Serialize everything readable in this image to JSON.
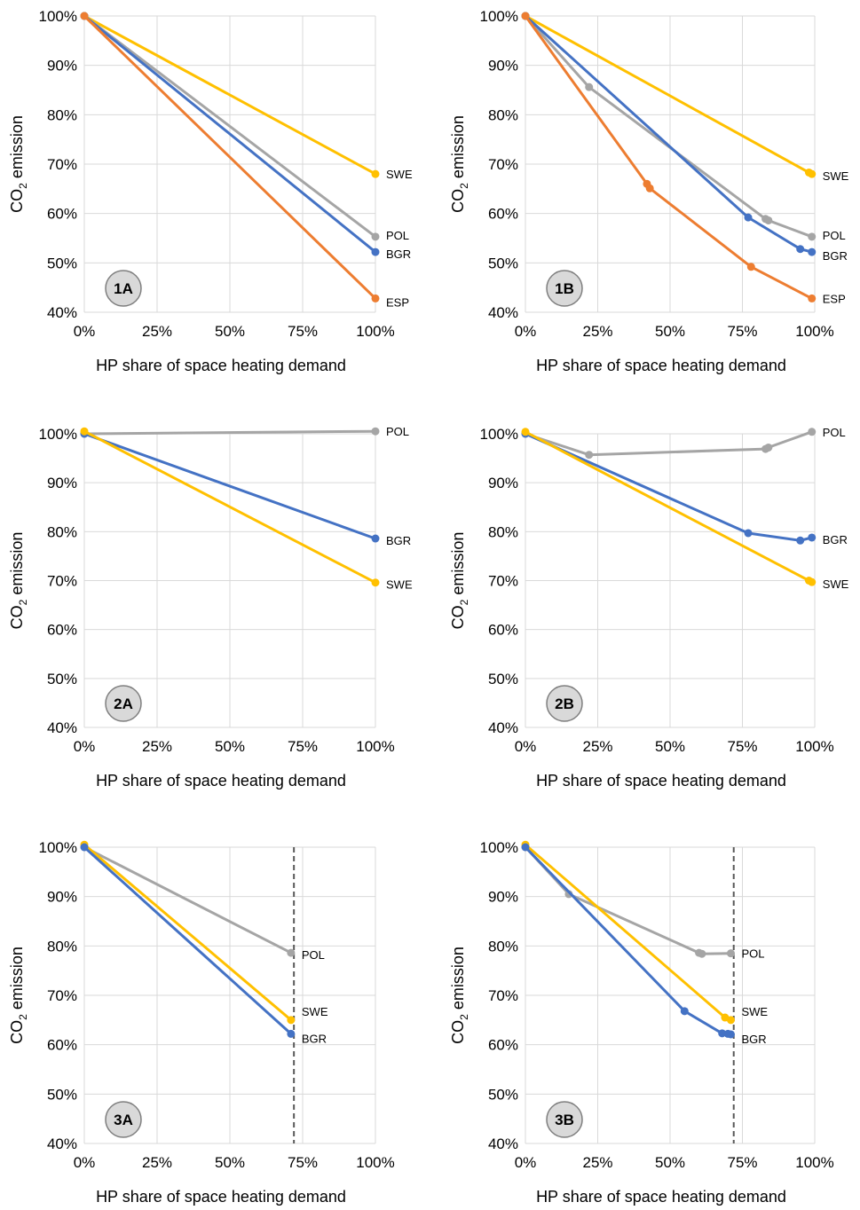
{
  "colors": {
    "SWE": "#FFC000",
    "POL": "#A5A5A5",
    "BGR": "#4472C4",
    "ESP": "#ED7D31",
    "grid": "#D9D9D9"
  },
  "chart_data": [
    {
      "panel": "1A",
      "type": "line",
      "xlabel": "HP share of space heating demand",
      "ylabel_main": "CO",
      "ylabel_sub": "2",
      "ylabel_rest": " emission",
      "xticks": [
        "0%",
        "25%",
        "50%",
        "75%",
        "100%"
      ],
      "yticks": [
        "40%",
        "50%",
        "60%",
        "70%",
        "80%",
        "90%",
        "100%"
      ],
      "xlim": [
        0,
        100
      ],
      "ylim": [
        40,
        100
      ],
      "vline": null,
      "series": [
        {
          "name": "SWE",
          "points": [
            [
              0,
              100
            ],
            [
              100,
              68
            ]
          ]
        },
        {
          "name": "POL",
          "points": [
            [
              0,
              100
            ],
            [
              100,
              55.3
            ]
          ]
        },
        {
          "name": "BGR",
          "points": [
            [
              0,
              100
            ],
            [
              100,
              52.2
            ]
          ]
        },
        {
          "name": "ESP",
          "points": [
            [
              0,
              100
            ],
            [
              100,
              42.8
            ]
          ]
        }
      ]
    },
    {
      "panel": "1B",
      "type": "line",
      "xlabel": "HP share of space heating demand",
      "ylabel_main": "CO",
      "ylabel_sub": "2",
      "ylabel_rest": " emission",
      "xticks": [
        "0%",
        "25%",
        "50%",
        "75%",
        "100%"
      ],
      "yticks": [
        "40%",
        "50%",
        "60%",
        "70%",
        "80%",
        "90%",
        "100%"
      ],
      "xlim": [
        0,
        100
      ],
      "ylim": [
        40,
        100
      ],
      "vline": null,
      "series": [
        {
          "name": "SWE",
          "points": [
            [
              0,
              100
            ],
            [
              98,
              68.3
            ],
            [
              99,
              68
            ]
          ]
        },
        {
          "name": "POL",
          "points": [
            [
              0,
              100
            ],
            [
              22,
              85.6
            ],
            [
              83,
              58.9
            ],
            [
              84,
              58.6
            ],
            [
              99,
              55.3
            ]
          ]
        },
        {
          "name": "BGR",
          "points": [
            [
              0,
              100
            ],
            [
              77,
              59.2
            ],
            [
              95,
              52.8
            ],
            [
              99,
              52.2
            ]
          ]
        },
        {
          "name": "ESP",
          "points": [
            [
              0,
              100
            ],
            [
              42,
              66
            ],
            [
              43,
              65.1
            ],
            [
              78,
              49.2
            ],
            [
              99,
              42.8
            ]
          ]
        }
      ]
    },
    {
      "panel": "2A",
      "type": "line",
      "xlabel": "HP share of space heating demand",
      "ylabel_main": "CO",
      "ylabel_sub": "2",
      "ylabel_rest": " emission",
      "xticks": [
        "0%",
        "25%",
        "50%",
        "75%",
        "100%"
      ],
      "yticks": [
        "40%",
        "50%",
        "60%",
        "70%",
        "80%",
        "90%",
        "100%"
      ],
      "xlim": [
        0,
        100
      ],
      "ylim": [
        40,
        100
      ],
      "vline": null,
      "series": [
        {
          "name": "POL",
          "points": [
            [
              0,
              100
            ],
            [
              100,
              100.5
            ]
          ]
        },
        {
          "name": "BGR",
          "points": [
            [
              0,
              100
            ],
            [
              100,
              78.6
            ]
          ]
        },
        {
          "name": "SWE",
          "points": [
            [
              0,
              100.5
            ],
            [
              100,
              69.6
            ]
          ]
        }
      ]
    },
    {
      "panel": "2B",
      "type": "line",
      "xlabel": "HP share of space heating demand",
      "ylabel_main": "CO",
      "ylabel_sub": "2",
      "ylabel_rest": " emission",
      "xticks": [
        "0%",
        "25%",
        "50%",
        "75%",
        "100%"
      ],
      "yticks": [
        "40%",
        "50%",
        "60%",
        "70%",
        "80%",
        "90%",
        "100%"
      ],
      "xlim": [
        0,
        100
      ],
      "ylim": [
        40,
        100
      ],
      "vline": null,
      "series": [
        {
          "name": "POL",
          "points": [
            [
              0,
              100
            ],
            [
              22,
              95.7
            ],
            [
              83,
              96.9
            ],
            [
              84,
              97.2
            ],
            [
              99,
              100.4
            ]
          ]
        },
        {
          "name": "BGR",
          "points": [
            [
              0,
              100
            ],
            [
              77,
              79.7
            ],
            [
              95,
              78.2
            ],
            [
              99,
              78.8
            ]
          ]
        },
        {
          "name": "SWE",
          "points": [
            [
              0,
              100.4
            ],
            [
              98,
              70
            ],
            [
              99,
              69.7
            ]
          ]
        }
      ]
    },
    {
      "panel": "3A",
      "type": "line",
      "xlabel": "HP share of space heating demand",
      "ylabel_main": "CO",
      "ylabel_sub": "2",
      "ylabel_rest": " emission",
      "xticks": [
        "0%",
        "25%",
        "50%",
        "75%",
        "100%"
      ],
      "yticks": [
        "40%",
        "50%",
        "60%",
        "70%",
        "80%",
        "90%",
        "100%"
      ],
      "xlim": [
        0,
        100
      ],
      "ylim": [
        40,
        100
      ],
      "vline": 72,
      "series": [
        {
          "name": "POL",
          "points": [
            [
              0,
              100
            ],
            [
              71,
              78.6
            ]
          ]
        },
        {
          "name": "SWE",
          "points": [
            [
              0,
              100.5
            ],
            [
              71,
              65
            ]
          ]
        },
        {
          "name": "BGR",
          "points": [
            [
              0,
              100
            ],
            [
              71,
              62.2
            ]
          ]
        }
      ]
    },
    {
      "panel": "3B",
      "type": "line",
      "xlabel": "HP share of space heating demand",
      "ylabel_main": "CO",
      "ylabel_sub": "2",
      "ylabel_rest": " emission",
      "xticks": [
        "0%",
        "25%",
        "50%",
        "75%",
        "100%"
      ],
      "yticks": [
        "40%",
        "50%",
        "60%",
        "70%",
        "80%",
        "90%",
        "100%"
      ],
      "xlim": [
        0,
        100
      ],
      "ylim": [
        40,
        100
      ],
      "vline": 72,
      "series": [
        {
          "name": "POL",
          "points": [
            [
              0,
              100
            ],
            [
              15,
              90.5
            ],
            [
              60,
              78.6
            ],
            [
              61,
              78.4
            ],
            [
              71,
              78.5
            ]
          ]
        },
        {
          "name": "SWE",
          "points": [
            [
              0,
              100.5
            ],
            [
              69,
              65.5
            ],
            [
              71,
              65
            ]
          ]
        },
        {
          "name": "BGR",
          "points": [
            [
              0,
              100
            ],
            [
              55,
              66.8
            ],
            [
              68,
              62.3
            ],
            [
              70,
              62.2
            ],
            [
              71,
              62.1
            ]
          ]
        }
      ]
    }
  ],
  "label_offsets_note": ""
}
